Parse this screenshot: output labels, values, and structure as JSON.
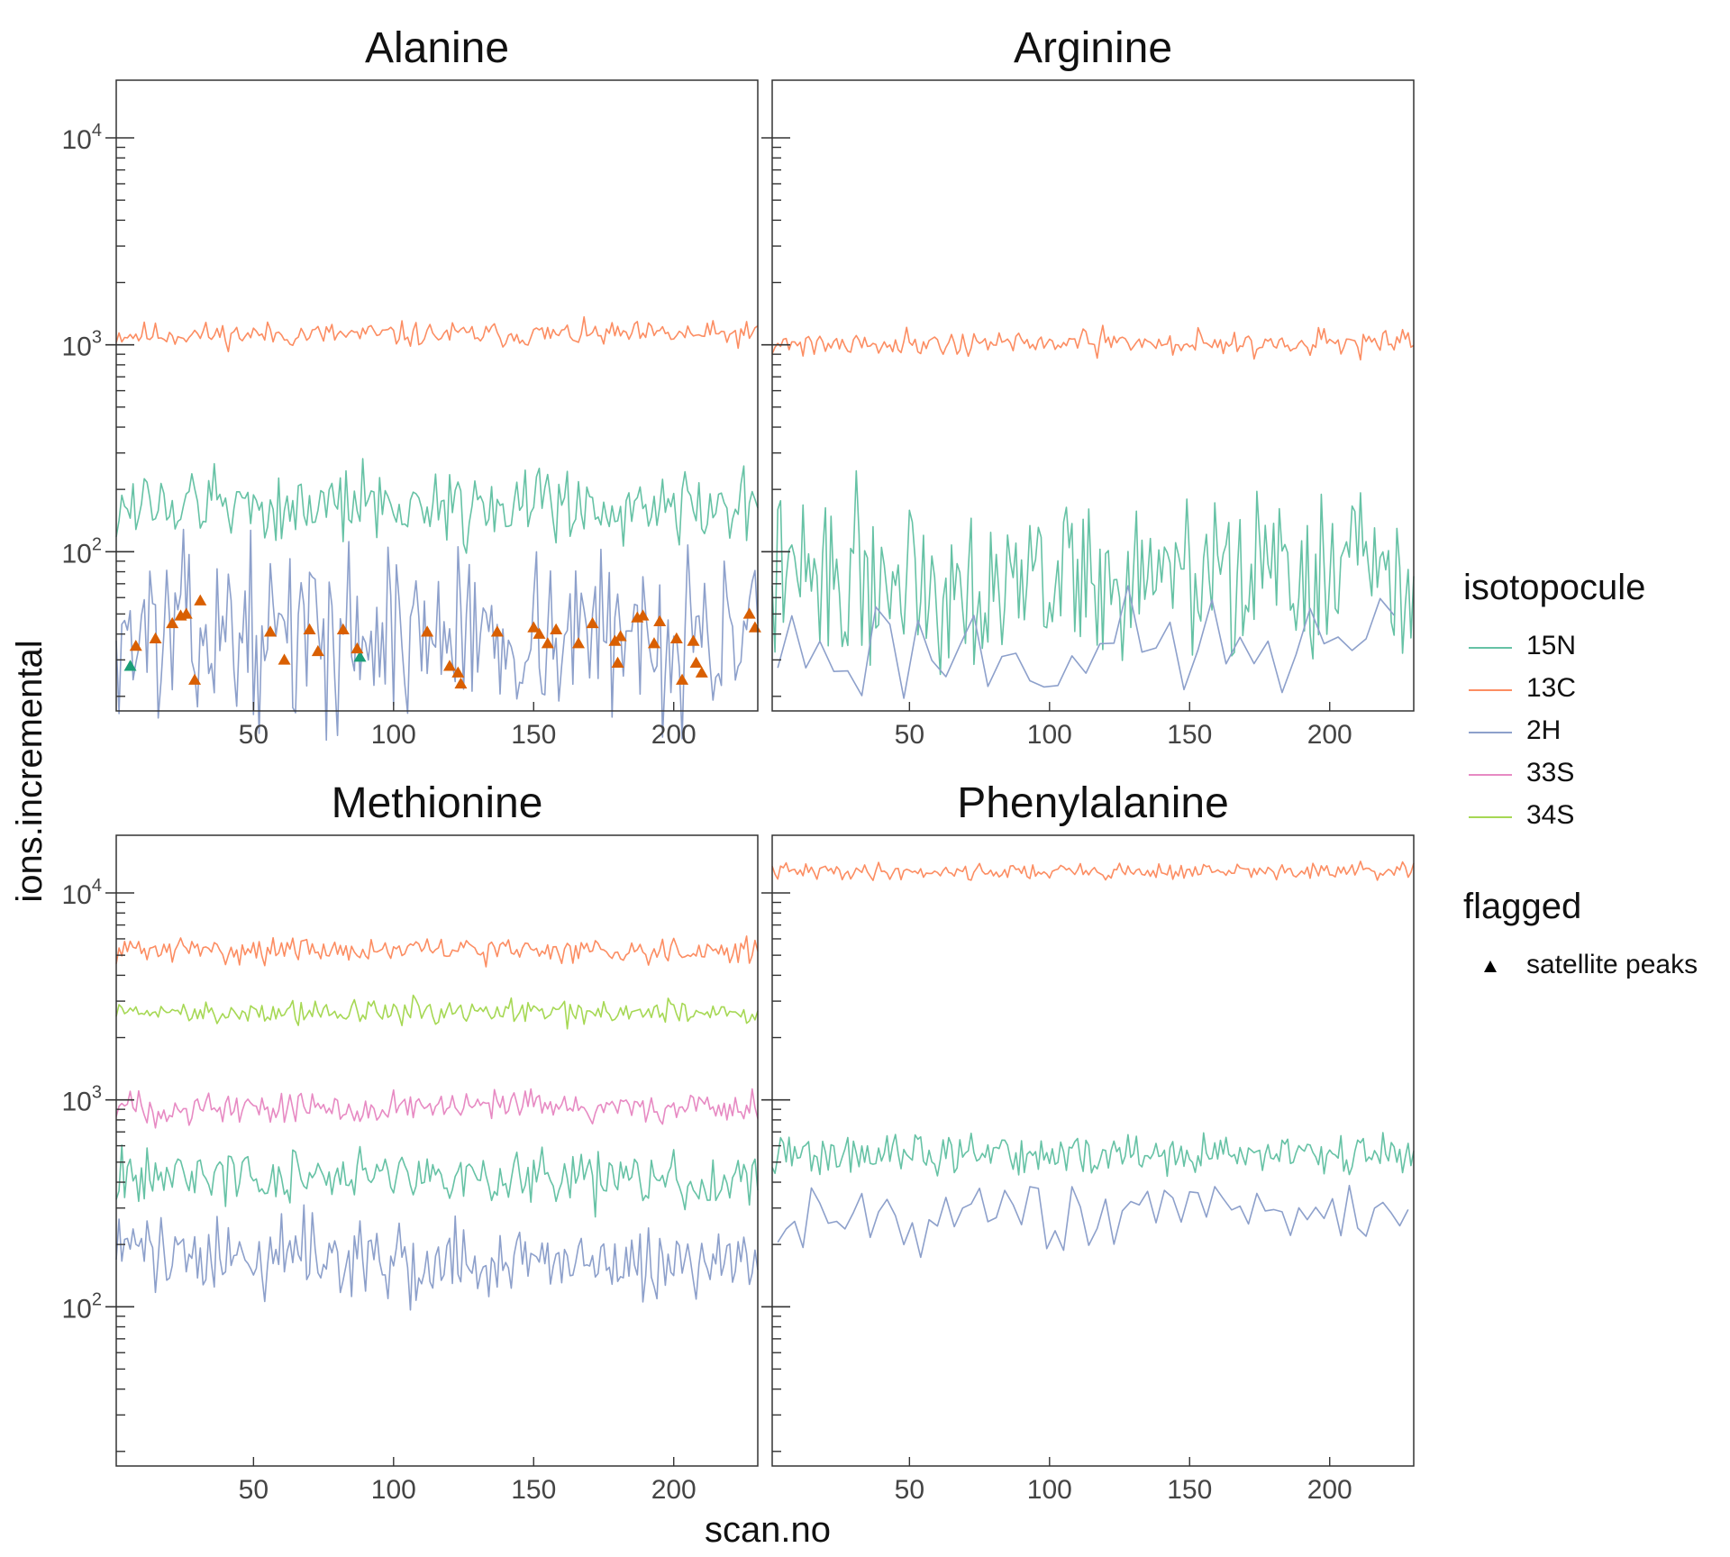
{
  "chart_data": {
    "type": "line",
    "xlabel": "scan.no",
    "ylabel": "ions.incremental",
    "y_scale": "log10",
    "ylim": [
      17,
      19000
    ],
    "xlim": [
      1,
      230
    ],
    "x_ticks": [
      50,
      100,
      150,
      200
    ],
    "y_ticks": [
      {
        "value": 100,
        "base": "10",
        "exp": "2"
      },
      {
        "value": 1000,
        "base": "10",
        "exp": "3"
      },
      {
        "value": 10000,
        "base": "10",
        "exp": "4"
      }
    ],
    "grid": false,
    "legend_position": "right",
    "isotopocule_legend": {
      "title": "isotopocule",
      "entries": [
        {
          "name": "15N",
          "color": "#66c2a5"
        },
        {
          "name": "13C",
          "color": "#fc8d62"
        },
        {
          "name": "2H",
          "color": "#8da0cb"
        },
        {
          "name": "33S",
          "color": "#e78ac3"
        },
        {
          "name": "34S",
          "color": "#a6d854"
        }
      ]
    },
    "flagged_legend": {
      "title": "flagged",
      "entries": [
        {
          "name": "satellite peaks",
          "shape": "triangle",
          "color": "#000000"
        }
      ]
    },
    "panels": [
      {
        "title": "Alanine",
        "series": [
          {
            "name": "13C",
            "color": "#fc8d62",
            "x_range": [
              1,
              230
            ],
            "level": 1120,
            "noise": 0.03,
            "seed": 11
          },
          {
            "name": "15N",
            "color": "#66c2a5",
            "x_range": [
              1,
              230
            ],
            "level": 168,
            "noise": 0.09,
            "seed": 12
          },
          {
            "name": "2H",
            "color": "#8da0cb",
            "x_range": [
              1,
              230
            ],
            "level": 40,
            "noise": 0.2,
            "seed": 13
          }
        ],
        "flagged_points": [
          {
            "x": 6,
            "y": 28,
            "isotopocule": "15N",
            "color": "#1b9e77"
          },
          {
            "x": 88,
            "y": 31,
            "isotopocule": "15N",
            "color": "#1b9e77"
          },
          {
            "x": 8,
            "y": 35,
            "isotopocule": "2H",
            "color": "#d95f02"
          },
          {
            "x": 15,
            "y": 38,
            "isotopocule": "2H",
            "color": "#d95f02"
          },
          {
            "x": 21,
            "y": 45,
            "isotopocule": "2H",
            "color": "#d95f02"
          },
          {
            "x": 24,
            "y": 49,
            "isotopocule": "2H",
            "color": "#d95f02"
          },
          {
            "x": 26,
            "y": 50,
            "isotopocule": "2H",
            "color": "#d95f02"
          },
          {
            "x": 29,
            "y": 24,
            "isotopocule": "2H",
            "color": "#d95f02"
          },
          {
            "x": 31,
            "y": 58,
            "isotopocule": "2H",
            "color": "#d95f02"
          },
          {
            "x": 56,
            "y": 41,
            "isotopocule": "2H",
            "color": "#d95f02"
          },
          {
            "x": 61,
            "y": 30,
            "isotopocule": "2H",
            "color": "#d95f02"
          },
          {
            "x": 70,
            "y": 42,
            "isotopocule": "2H",
            "color": "#d95f02"
          },
          {
            "x": 73,
            "y": 33,
            "isotopocule": "2H",
            "color": "#d95f02"
          },
          {
            "x": 82,
            "y": 42,
            "isotopocule": "2H",
            "color": "#d95f02"
          },
          {
            "x": 87,
            "y": 34,
            "isotopocule": "2H",
            "color": "#d95f02"
          },
          {
            "x": 112,
            "y": 41,
            "isotopocule": "2H",
            "color": "#d95f02"
          },
          {
            "x": 120,
            "y": 28,
            "isotopocule": "2H",
            "color": "#d95f02"
          },
          {
            "x": 123,
            "y": 26,
            "isotopocule": "2H",
            "color": "#d95f02"
          },
          {
            "x": 124,
            "y": 23,
            "isotopocule": "2H",
            "color": "#d95f02"
          },
          {
            "x": 137,
            "y": 41,
            "isotopocule": "2H",
            "color": "#d95f02"
          },
          {
            "x": 150,
            "y": 43,
            "isotopocule": "2H",
            "color": "#d95f02"
          },
          {
            "x": 152,
            "y": 40,
            "isotopocule": "2H",
            "color": "#d95f02"
          },
          {
            "x": 155,
            "y": 36,
            "isotopocule": "2H",
            "color": "#d95f02"
          },
          {
            "x": 158,
            "y": 42,
            "isotopocule": "2H",
            "color": "#d95f02"
          },
          {
            "x": 166,
            "y": 36,
            "isotopocule": "2H",
            "color": "#d95f02"
          },
          {
            "x": 171,
            "y": 45,
            "isotopocule": "2H",
            "color": "#d95f02"
          },
          {
            "x": 179,
            "y": 37,
            "isotopocule": "2H",
            "color": "#d95f02"
          },
          {
            "x": 180,
            "y": 29,
            "isotopocule": "2H",
            "color": "#d95f02"
          },
          {
            "x": 181,
            "y": 39,
            "isotopocule": "2H",
            "color": "#d95f02"
          },
          {
            "x": 187,
            "y": 48,
            "isotopocule": "2H",
            "color": "#d95f02"
          },
          {
            "x": 189,
            "y": 49,
            "isotopocule": "2H",
            "color": "#d95f02"
          },
          {
            "x": 193,
            "y": 36,
            "isotopocule": "2H",
            "color": "#d95f02"
          },
          {
            "x": 195,
            "y": 46,
            "isotopocule": "2H",
            "color": "#d95f02"
          },
          {
            "x": 201,
            "y": 38,
            "isotopocule": "2H",
            "color": "#d95f02"
          },
          {
            "x": 203,
            "y": 24,
            "isotopocule": "2H",
            "color": "#d95f02"
          },
          {
            "x": 207,
            "y": 37,
            "isotopocule": "2H",
            "color": "#d95f02"
          },
          {
            "x": 208,
            "y": 29,
            "isotopocule": "2H",
            "color": "#d95f02"
          },
          {
            "x": 210,
            "y": 26,
            "isotopocule": "2H",
            "color": "#d95f02"
          },
          {
            "x": 227,
            "y": 50,
            "isotopocule": "2H",
            "color": "#d95f02"
          },
          {
            "x": 229,
            "y": 43,
            "isotopocule": "2H",
            "color": "#d95f02"
          }
        ]
      },
      {
        "title": "Arginine",
        "series": [
          {
            "name": "13C",
            "color": "#fc8d62",
            "x_range": [
              1,
              230
            ],
            "level": 1020,
            "noise": 0.03,
            "seed": 21
          },
          {
            "name": "15N",
            "color": "#66c2a5",
            "x_range": [
              1,
              230
            ],
            "level": 75,
            "noise": 0.2,
            "seed": 22
          },
          {
            "name": "2H",
            "color": "#8da0cb",
            "x_range": [
              3,
              226
            ],
            "level": 34,
            "noise": 0.12,
            "seed": 23,
            "step": 5
          }
        ],
        "flagged_points": []
      },
      {
        "title": "Methionine",
        "series": [
          {
            "name": "13C",
            "color": "#fc8d62",
            "x_range": [
              1,
              230
            ],
            "level": 5300,
            "noise": 0.03,
            "seed": 31
          },
          {
            "name": "34S",
            "color": "#a6d854",
            "x_range": [
              1,
              230
            ],
            "level": 2650,
            "noise": 0.03,
            "seed": 32
          },
          {
            "name": "33S",
            "color": "#e78ac3",
            "x_range": [
              1,
              230
            ],
            "level": 920,
            "noise": 0.04,
            "seed": 33
          },
          {
            "name": "15N",
            "color": "#66c2a5",
            "x_range": [
              1,
              230
            ],
            "level": 425,
            "noise": 0.07,
            "seed": 34
          },
          {
            "name": "2H",
            "color": "#8da0cb",
            "x_range": [
              1,
              230
            ],
            "level": 170,
            "noise": 0.1,
            "seed": 35
          }
        ],
        "flagged_points": []
      },
      {
        "title": "Phenylalanine",
        "series": [
          {
            "name": "13C",
            "color": "#fc8d62",
            "x_range": [
              1,
              230
            ],
            "level": 12700,
            "noise": 0.02,
            "seed": 41
          },
          {
            "name": "15N",
            "color": "#66c2a5",
            "x_range": [
              1,
              230
            ],
            "level": 540,
            "noise": 0.05,
            "seed": 42
          },
          {
            "name": "2H",
            "color": "#8da0cb",
            "x_range": [
              3,
              230
            ],
            "level": 280,
            "noise": 0.07,
            "seed": 43,
            "step": 3
          }
        ],
        "flagged_points": []
      }
    ]
  }
}
